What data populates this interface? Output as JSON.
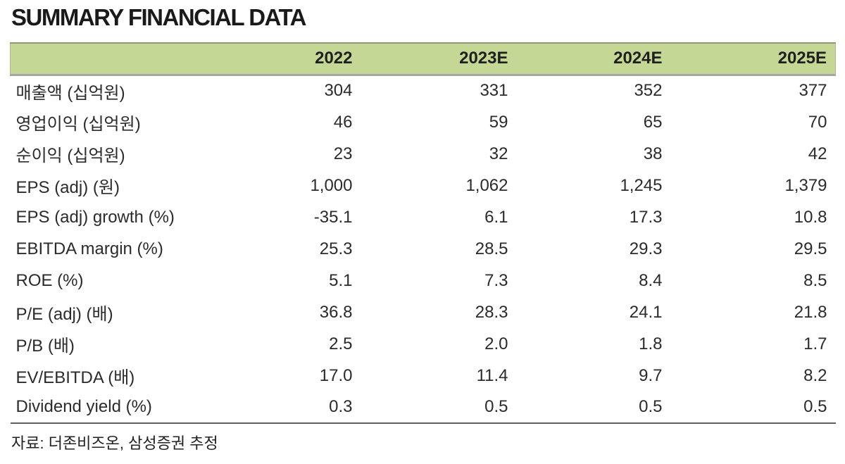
{
  "page": {
    "title": "SUMMARY FINANCIAL DATA",
    "source_note": "자료: 더존비즈온, 삼성증권 추정"
  },
  "colors": {
    "header_bg": "#c5d794",
    "header_border_top": "#90947e",
    "header_border_bottom": "#a6a6a6",
    "table_bottom_line": "#5f5f5f",
    "title_text": "#1a1a1a",
    "body_text": "#2b2b2b"
  },
  "table": {
    "columns": [
      "",
      "2022",
      "2023E",
      "2024E",
      "2025E"
    ],
    "rows": [
      {
        "label": "매출액 (십억원)",
        "values": [
          "304",
          "331",
          "352",
          "377"
        ]
      },
      {
        "label": "영업이익 (십억원)",
        "values": [
          "46",
          "59",
          "65",
          "70"
        ]
      },
      {
        "label": "순이익 (십억원)",
        "values": [
          "23",
          "32",
          "38",
          "42"
        ]
      },
      {
        "label": "EPS (adj) (원)",
        "values": [
          "1,000",
          "1,062",
          "1,245",
          "1,379"
        ]
      },
      {
        "label": "EPS (adj) growth (%)",
        "values": [
          "-35.1",
          "6.1",
          "17.3",
          "10.8"
        ]
      },
      {
        "label": "EBITDA margin (%)",
        "values": [
          "25.3",
          "28.5",
          "29.3",
          "29.5"
        ]
      },
      {
        "label": "ROE (%)",
        "values": [
          "5.1",
          "7.3",
          "8.4",
          "8.5"
        ]
      },
      {
        "label": "P/E (adj) (배)",
        "values": [
          "36.8",
          "28.3",
          "24.1",
          "21.8"
        ]
      },
      {
        "label": "P/B (배)",
        "values": [
          "2.5",
          "2.0",
          "1.8",
          "1.7"
        ]
      },
      {
        "label": "EV/EBITDA (배)",
        "values": [
          "17.0",
          "11.4",
          "9.7",
          "8.2"
        ]
      },
      {
        "label": "Dividend yield (%)",
        "values": [
          "0.3",
          "0.5",
          "0.5",
          "0.5"
        ]
      }
    ]
  }
}
